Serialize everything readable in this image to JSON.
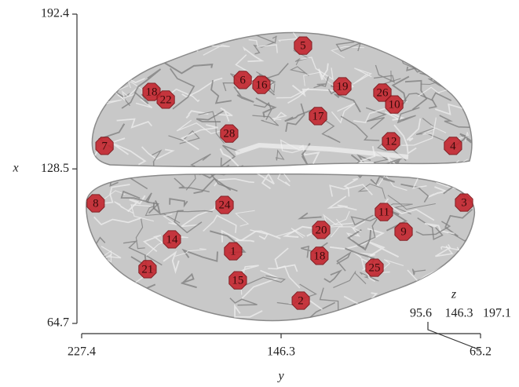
{
  "chart_data": {
    "type": "scatter",
    "xlabel": "y",
    "ylabel": "x",
    "zlabel": "z",
    "xlim": [
      227.4,
      65.2
    ],
    "xticks": [
      227.4,
      146.3,
      65.2
    ],
    "ylim": [
      64.7,
      192.4
    ],
    "yticks": [
      64.7,
      128.5,
      192.4
    ],
    "zlim": [
      95.6,
      197.1
    ],
    "zticks": [
      95.6,
      146.3,
      197.1
    ],
    "color": "#c4262e",
    "labels": [
      "5",
      "6",
      "16",
      "18",
      "22",
      "19",
      "26",
      "10",
      "17",
      "28",
      "7",
      "12",
      "4",
      "8",
      "24",
      "3",
      "11",
      "9",
      "20",
      "14",
      "1",
      "18",
      "21",
      "25",
      "15",
      "2"
    ],
    "x": [
      137.4,
      161.9,
      154.3,
      199.0,
      193.2,
      121.4,
      105.1,
      100.3,
      131.3,
      167.4,
      218.1,
      101.6,
      76.4,
      221.7,
      169.3,
      71.9,
      104.5,
      96.5,
      130.0,
      190.7,
      165.8,
      130.7,
      200.6,
      108.3,
      163.9,
      138.3
    ],
    "values": [
      179.4,
      165.2,
      163.2,
      160.3,
      157.1,
      162.6,
      160.0,
      155.1,
      150.3,
      143.1,
      138.0,
      139.9,
      138.0,
      114.3,
      113.6,
      114.6,
      110.7,
      102.6,
      103.3,
      99.4,
      94.5,
      92.6,
      87.1,
      87.7,
      82.5,
      74.1
    ]
  }
}
